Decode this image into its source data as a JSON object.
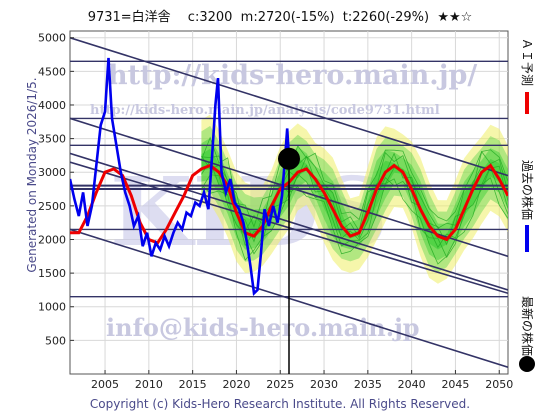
{
  "header": {
    "title": "9731=白洋舎　 c:3200  m:2720(-15%)  t:2260(-29%)  ★★☆"
  },
  "side_label": "Generated on Monday 2026/1/5.",
  "footer": "Copyright (c) Kids-Hero Research Institute. All Rights Reserved.",
  "watermarks": {
    "url_main": "http://kids-hero.main.jp/",
    "url_sub": "http://kids-hero.main.jp/analysis/code9731.html",
    "mail": "info@kids-hero.main.jp",
    "big": "KIDS"
  },
  "legend": {
    "ai_forecast": "ＡＩ予測",
    "past_price": "過去の株価",
    "latest_price": "最新の株価"
  },
  "colors": {
    "past_price": "#0000ee",
    "ai_forecast": "#ee0000",
    "band_green": "#33cc33",
    "band_yellow": "#eeee66",
    "channel": "#333366",
    "latest_marker": "#000000"
  },
  "chart_data": {
    "type": "line",
    "xlim": [
      2001,
      2051
    ],
    "ylim": [
      0,
      5100
    ],
    "xticks": [
      2005,
      2010,
      2015,
      2020,
      2025,
      2030,
      2035,
      2040,
      2045,
      2050
    ],
    "yticks": [
      500,
      1000,
      1500,
      2000,
      2500,
      3000,
      3500,
      4000,
      4500,
      5000
    ],
    "horizontal_levels": [
      1150,
      2150,
      2750,
      2800,
      3400,
      3800,
      4650
    ],
    "channels": [
      {
        "from": [
          2001,
          5000
        ],
        "to": [
          2051,
          2950
        ]
      },
      {
        "from": [
          2001,
          3800
        ],
        "to": [
          2051,
          1750
        ]
      },
      {
        "from": [
          2001,
          3280
        ],
        "to": [
          2051,
          1250
        ]
      },
      {
        "from": [
          2001,
          3150
        ],
        "to": [
          2051,
          1200
        ]
      },
      {
        "from": [
          2001,
          2150
        ],
        "to": [
          2051,
          100
        ]
      }
    ],
    "latest": {
      "x": 2026.0,
      "y": 3200
    },
    "series": [
      {
        "key": "past",
        "points": [
          [
            2001,
            2900
          ],
          [
            2001.5,
            2600
          ],
          [
            2002,
            2350
          ],
          [
            2002.5,
            2700
          ],
          [
            2003,
            2200
          ],
          [
            2003.5,
            2500
          ],
          [
            2004,
            3100
          ],
          [
            2004.5,
            3700
          ],
          [
            2005,
            3900
          ],
          [
            2005.4,
            4700
          ],
          [
            2005.8,
            3800
          ],
          [
            2006.3,
            3400
          ],
          [
            2006.8,
            3000
          ],
          [
            2007.3,
            2700
          ],
          [
            2007.8,
            2500
          ],
          [
            2008.3,
            2200
          ],
          [
            2008.8,
            2350
          ],
          [
            2009.3,
            1900
          ],
          [
            2009.8,
            2100
          ],
          [
            2010.3,
            1750
          ],
          [
            2010.8,
            1950
          ],
          [
            2011.3,
            1850
          ],
          [
            2011.8,
            2050
          ],
          [
            2012.3,
            1900
          ],
          [
            2012.8,
            2100
          ],
          [
            2013.3,
            2250
          ],
          [
            2013.8,
            2150
          ],
          [
            2014.3,
            2400
          ],
          [
            2014.8,
            2350
          ],
          [
            2015.3,
            2550
          ],
          [
            2015.8,
            2500
          ],
          [
            2016.3,
            2700
          ],
          [
            2016.8,
            2450
          ],
          [
            2017.2,
            3200
          ],
          [
            2017.6,
            4000
          ],
          [
            2017.9,
            4400
          ],
          [
            2018.3,
            3000
          ],
          [
            2018.8,
            2700
          ],
          [
            2019.3,
            2900
          ],
          [
            2019.8,
            2550
          ],
          [
            2020.3,
            2450
          ],
          [
            2020.8,
            2250
          ],
          [
            2021.2,
            1950
          ],
          [
            2021.6,
            1600
          ],
          [
            2022.0,
            1200
          ],
          [
            2022.4,
            1250
          ],
          [
            2022.8,
            1800
          ],
          [
            2023.2,
            2450
          ],
          [
            2023.7,
            2200
          ],
          [
            2024.2,
            2500
          ],
          [
            2024.7,
            2250
          ],
          [
            2025.2,
            2650
          ],
          [
            2025.6,
            3300
          ],
          [
            2025.8,
            3650
          ],
          [
            2026.0,
            3200
          ]
        ]
      },
      {
        "key": "ai",
        "points": [
          [
            2001,
            2100
          ],
          [
            2002,
            2100
          ],
          [
            2003,
            2350
          ],
          [
            2004,
            2700
          ],
          [
            2005,
            3000
          ],
          [
            2006,
            3050
          ],
          [
            2007,
            2950
          ],
          [
            2008,
            2650
          ],
          [
            2009,
            2250
          ],
          [
            2010,
            2000
          ],
          [
            2011,
            1950
          ],
          [
            2012,
            2150
          ],
          [
            2013,
            2400
          ],
          [
            2014,
            2650
          ],
          [
            2015,
            2950
          ],
          [
            2016,
            3050
          ],
          [
            2017,
            3100
          ],
          [
            2018,
            3000
          ],
          [
            2019,
            2800
          ],
          [
            2020,
            2400
          ],
          [
            2021,
            2100
          ],
          [
            2022,
            2050
          ],
          [
            2023,
            2200
          ],
          [
            2024,
            2500
          ],
          [
            2025,
            2750
          ],
          [
            2026,
            2850
          ],
          [
            2027,
            3000
          ],
          [
            2028,
            3050
          ],
          [
            2029,
            2900
          ],
          [
            2030,
            2700
          ],
          [
            2031,
            2450
          ],
          [
            2032,
            2200
          ],
          [
            2033,
            2050
          ],
          [
            2034,
            2100
          ],
          [
            2035,
            2400
          ],
          [
            2036,
            2750
          ],
          [
            2037,
            3000
          ],
          [
            2038,
            3100
          ],
          [
            2039,
            3000
          ],
          [
            2040,
            2750
          ],
          [
            2041,
            2450
          ],
          [
            2042,
            2200
          ],
          [
            2043,
            2050
          ],
          [
            2044,
            2000
          ],
          [
            2045,
            2150
          ],
          [
            2046,
            2450
          ],
          [
            2047,
            2750
          ],
          [
            2048,
            3000
          ],
          [
            2049,
            3100
          ],
          [
            2050,
            2900
          ],
          [
            2051,
            2650
          ]
        ]
      }
    ]
  }
}
